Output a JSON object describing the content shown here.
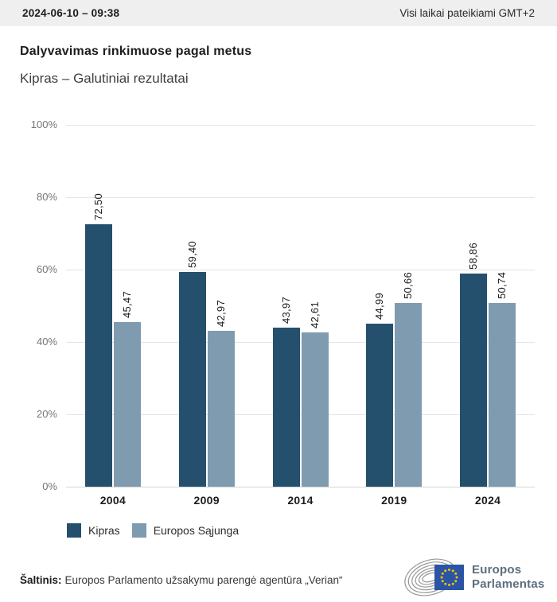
{
  "header": {
    "datetime": "2024-06-10 – 09:38",
    "timezone_note": "Visi laikai pateikiami GMT+2"
  },
  "title": "Dalyvavimas rinkimuose pagal metus",
  "subtitle": "Kipras – Galutiniai rezultatai",
  "chart_data": {
    "type": "bar",
    "categories": [
      "2004",
      "2009",
      "2014",
      "2019",
      "2024"
    ],
    "series": [
      {
        "name": "Kipras",
        "color": "#25506d",
        "values": [
          72.5,
          59.4,
          43.97,
          44.99,
          58.86
        ]
      },
      {
        "name": "Europos Sąjunga",
        "color": "#7f9bb0",
        "values": [
          45.47,
          42.97,
          42.61,
          50.66,
          50.74
        ]
      }
    ],
    "title": "Dalyvavimas rinkimuose pagal metus",
    "subtitle": "Kipras – Galutiniai rezultatai",
    "xlabel": "",
    "ylabel": "",
    "ylim": [
      0,
      100
    ],
    "yticks": [
      0,
      20,
      40,
      60,
      80,
      100
    ],
    "ytick_suffix": "%",
    "decimal_separator": ",",
    "value_label_decimals": 2,
    "value_label_rotation": -90,
    "grid": true,
    "legend_position": "bottom-left"
  },
  "footer": {
    "source_label": "Šaltinis:",
    "source_text": "Europos Parlamento užsakymu parengė agentūra „Verian“",
    "logo": {
      "line1": "Europos",
      "line2": "Parlamentas"
    }
  },
  "colors": {
    "topbar_bg": "#efefef",
    "grid": "#e4e4e4",
    "axis_label": "#767676",
    "text": "#1d1d1b",
    "series_kipras": "#25506d",
    "series_eu": "#7f9bb0",
    "logo_text": "#5c6e7e",
    "flag_blue": "#2b55a4",
    "star_yellow": "#f3c300",
    "swoosh_gray": "#979797"
  }
}
